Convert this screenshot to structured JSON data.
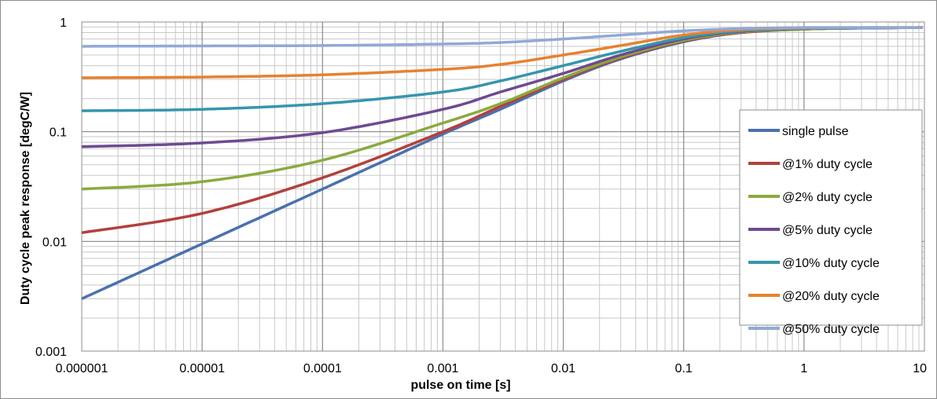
{
  "chart_data": {
    "type": "line",
    "title": "",
    "xlabel": "pulse on time [s]",
    "ylabel": "Duty cycle peak response  [degC/W]",
    "xscale": "log",
    "yscale": "log",
    "xlim": [
      1e-06,
      10
    ],
    "ylim": [
      0.001,
      1
    ],
    "x_ticks": [
      "0.000001",
      "0.00001",
      "0.0001",
      "0.001",
      "0.01",
      "0.1",
      "1",
      "10"
    ],
    "y_ticks": [
      "0.001",
      "0.01",
      "0.1",
      "1"
    ],
    "grid": "major and minor",
    "legend_position": "right",
    "x": [
      1e-06,
      1e-05,
      0.0001,
      0.001,
      0.003,
      0.01,
      0.03,
      0.1,
      0.3,
      1,
      3,
      10
    ],
    "series": [
      {
        "name": "single pulse",
        "color": "#4a71ae",
        "values": [
          0.003,
          0.0095,
          0.03,
          0.095,
          0.16,
          0.29,
          0.46,
          0.66,
          0.8,
          0.86,
          0.88,
          0.89
        ]
      },
      {
        "name": "@1% duty cycle",
        "color": "#b3403c",
        "values": [
          0.012,
          0.018,
          0.038,
          0.1,
          0.17,
          0.3,
          0.47,
          0.67,
          0.8,
          0.86,
          0.88,
          0.89
        ]
      },
      {
        "name": "@2% duty cycle",
        "color": "#8aab3e",
        "values": [
          0.03,
          0.035,
          0.055,
          0.12,
          0.18,
          0.31,
          0.48,
          0.68,
          0.81,
          0.86,
          0.88,
          0.89
        ]
      },
      {
        "name": "@5% duty cycle",
        "color": "#6e4a92",
        "values": [
          0.073,
          0.079,
          0.098,
          0.16,
          0.23,
          0.34,
          0.5,
          0.7,
          0.82,
          0.87,
          0.88,
          0.89
        ]
      },
      {
        "name": "@10% duty cycle",
        "color": "#3596ad",
        "values": [
          0.155,
          0.16,
          0.18,
          0.23,
          0.29,
          0.4,
          0.54,
          0.72,
          0.83,
          0.87,
          0.88,
          0.89
        ]
      },
      {
        "name": "@20% duty cycle",
        "color": "#e8812e",
        "values": [
          0.31,
          0.315,
          0.33,
          0.37,
          0.41,
          0.5,
          0.61,
          0.76,
          0.85,
          0.88,
          0.89,
          0.89
        ]
      },
      {
        "name": "@50% duty cycle",
        "color": "#90a9d6",
        "values": [
          0.6,
          0.605,
          0.61,
          0.63,
          0.65,
          0.7,
          0.76,
          0.83,
          0.87,
          0.89,
          0.89,
          0.89
        ]
      }
    ]
  }
}
